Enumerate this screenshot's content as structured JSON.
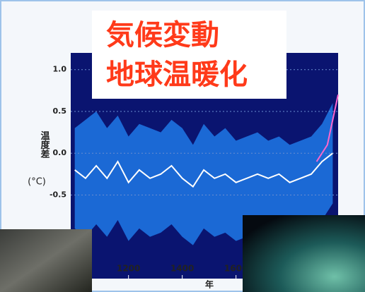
{
  "chart_data": {
    "type": "line",
    "title_lines": [
      "気候変動",
      "地球温暖化"
    ],
    "y_label": "温度差",
    "y_unit": "(°C)",
    "x_label": "年",
    "xlim": [
      985,
      1980
    ],
    "ylim": [
      -1.5,
      1.2
    ],
    "xticks": [
      1200,
      1400,
      1600
    ],
    "yticks": [
      {
        "value": 1,
        "label": "1.0"
      },
      {
        "value": 0.5,
        "label": "0.5"
      },
      {
        "value": 0,
        "label": "0.0"
      },
      -0.5
    ],
    "x": [
      1000,
      1040,
      1080,
      1120,
      1160,
      1200,
      1240,
      1280,
      1320,
      1360,
      1400,
      1440,
      1480,
      1520,
      1560,
      1600,
      1640,
      1680,
      1720,
      1760,
      1800,
      1840,
      1880,
      1920,
      1960
    ],
    "band": {
      "color": "#1e78e6",
      "upper": [
        0.3,
        0.4,
        0.5,
        0.3,
        0.45,
        0.2,
        0.35,
        0.3,
        0.25,
        0.4,
        0.3,
        0.1,
        0.35,
        0.2,
        0.3,
        0.15,
        0.2,
        0.25,
        0.15,
        0.2,
        0.1,
        0.15,
        0.2,
        0.35,
        0.6
      ],
      "lower": [
        -0.9,
        -1.0,
        -0.85,
        -1.0,
        -0.8,
        -1.05,
        -0.9,
        -1.0,
        -0.95,
        -0.85,
        -1.0,
        -1.1,
        -0.9,
        -1.0,
        -0.95,
        -1.05,
        -1.0,
        -0.95,
        -1.0,
        -0.95,
        -1.05,
        -1.0,
        -0.95,
        -0.8,
        -0.6
      ]
    },
    "series": [
      {
        "color": "#ffffff",
        "values": [
          -0.2,
          -0.3,
          -0.15,
          -0.3,
          -0.1,
          -0.35,
          -0.2,
          -0.3,
          -0.25,
          -0.15,
          -0.3,
          -0.4,
          -0.2,
          -0.3,
          -0.25,
          -0.35,
          -0.3,
          -0.25,
          -0.3,
          -0.25,
          -0.35,
          -0.3,
          -0.25,
          -0.1,
          0.0
        ]
      },
      {
        "color": "#ff66cc",
        "x": [
          1900,
          1940,
          1980
        ],
        "values": [
          -0.1,
          0.1,
          0.7
        ]
      }
    ]
  }
}
